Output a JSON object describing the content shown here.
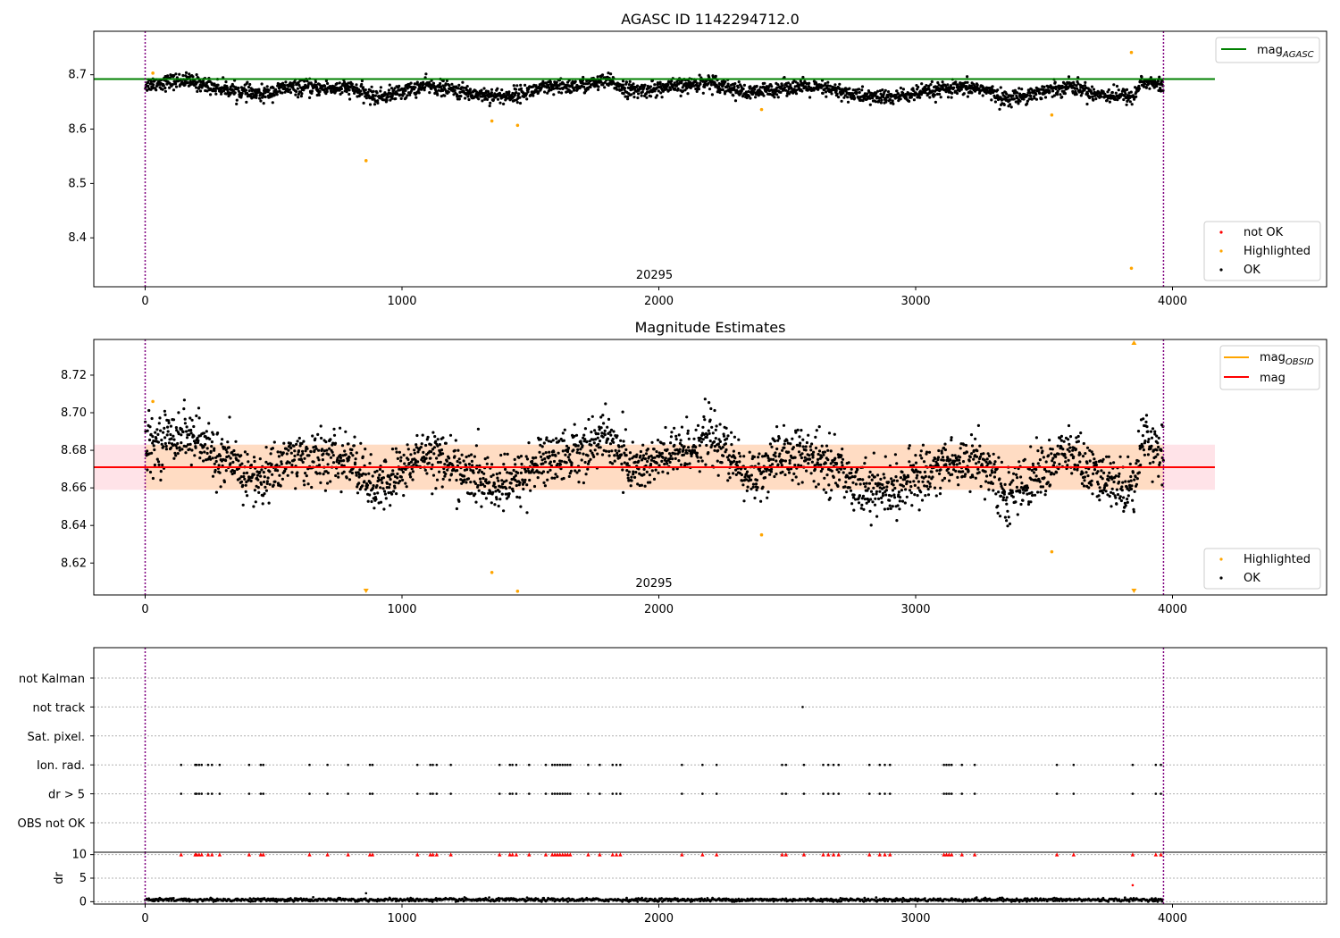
{
  "chart_data": [
    {
      "type": "scatter",
      "title": "AGASC ID 1142294712.0",
      "xlim": [
        -200,
        4600
      ],
      "ylim": [
        8.31,
        8.78
      ],
      "xticks": [
        0,
        1000,
        2000,
        3000,
        4000
      ],
      "yticks": [
        8.4,
        8.5,
        8.6,
        8.7
      ],
      "obsid_label": "20295",
      "obsid_label_x": 2000,
      "obs_bounds": [
        0,
        3965
      ],
      "legend_upper": [
        {
          "label": "mag",
          "sub": "AGASC",
          "color": "#008000"
        }
      ],
      "legend_lower": [
        {
          "label": "not OK",
          "color": "#ff0000"
        },
        {
          "label": "Highlighted",
          "color": "#ffa500"
        },
        {
          "label": "OK",
          "color": "#000000"
        }
      ],
      "mag_agasc": {
        "value": 8.692,
        "x_end": 4165
      },
      "highlighted_points": [
        [
          30,
          8.703
        ],
        [
          860,
          8.542
        ],
        [
          1350,
          8.615
        ],
        [
          1450,
          8.607
        ],
        [
          2400,
          8.636
        ],
        [
          3530,
          8.626
        ],
        [
          3840,
          8.741
        ],
        [
          3840,
          8.344
        ]
      ],
      "ok_trend": [
        [
          0,
          8.682
        ],
        [
          150,
          8.69
        ],
        [
          300,
          8.675
        ],
        [
          450,
          8.663
        ],
        [
          550,
          8.676
        ],
        [
          800,
          8.675
        ],
        [
          900,
          8.658
        ],
        [
          1100,
          8.68
        ],
        [
          1250,
          8.667
        ],
        [
          1400,
          8.66
        ],
        [
          1550,
          8.675
        ],
        [
          1700,
          8.68
        ],
        [
          1800,
          8.688
        ],
        [
          1900,
          8.67
        ],
        [
          2100,
          8.68
        ],
        [
          2200,
          8.688
        ],
        [
          2350,
          8.665
        ],
        [
          2500,
          8.678
        ],
        [
          2650,
          8.674
        ],
        [
          2800,
          8.66
        ],
        [
          2900,
          8.658
        ],
        [
          3100,
          8.672
        ],
        [
          3250,
          8.676
        ],
        [
          3350,
          8.655
        ],
        [
          3450,
          8.665
        ],
        [
          3600,
          8.68
        ],
        [
          3700,
          8.665
        ],
        [
          3850,
          8.66
        ],
        [
          3880,
          8.688
        ],
        [
          3960,
          8.68
        ]
      ],
      "ok_scatter": 0.007
    },
    {
      "type": "scatter",
      "title": "Magnitude Estimates",
      "xlim": [
        -200,
        4600
      ],
      "ylim": [
        8.603,
        8.739
      ],
      "xticks": [
        0,
        1000,
        2000,
        3000,
        4000
      ],
      "yticks": [
        8.62,
        8.64,
        8.66,
        8.68,
        8.7,
        8.72
      ],
      "obsid_label": "20295",
      "obsid_label_x": 2000,
      "obs_bounds": [
        0,
        3965
      ],
      "legend_upper": [
        {
          "label": "mag",
          "sub": "OBSID",
          "color": "#ffa500"
        },
        {
          "label": "mag",
          "sub": "",
          "color": "#ff0000"
        }
      ],
      "legend_lower": [
        {
          "label": "Highlighted",
          "color": "#ffa500"
        },
        {
          "label": "OK",
          "color": "#000000"
        }
      ],
      "mag": {
        "value": 8.671,
        "x_end": 4165
      },
      "mag_band": [
        8.659,
        8.683
      ],
      "obsid_band": [
        8.659,
        8.683
      ],
      "highlighted_points": [
        [
          30,
          8.706
        ],
        [
          1350,
          8.615
        ],
        [
          1450,
          8.605
        ],
        [
          2400,
          8.635
        ],
        [
          3530,
          8.626
        ]
      ],
      "clipped_markers": [
        [
          860,
          "down"
        ],
        [
          3850,
          "down"
        ],
        [
          3850,
          "up"
        ]
      ],
      "ok_trend": [
        [
          0,
          8.682
        ],
        [
          150,
          8.69
        ],
        [
          300,
          8.675
        ],
        [
          450,
          8.663
        ],
        [
          550,
          8.676
        ],
        [
          800,
          8.675
        ],
        [
          900,
          8.658
        ],
        [
          1100,
          8.68
        ],
        [
          1250,
          8.667
        ],
        [
          1400,
          8.66
        ],
        [
          1550,
          8.675
        ],
        [
          1700,
          8.68
        ],
        [
          1800,
          8.688
        ],
        [
          1900,
          8.67
        ],
        [
          2100,
          8.68
        ],
        [
          2200,
          8.688
        ],
        [
          2350,
          8.665
        ],
        [
          2500,
          8.678
        ],
        [
          2650,
          8.674
        ],
        [
          2800,
          8.66
        ],
        [
          2900,
          8.658
        ],
        [
          3100,
          8.672
        ],
        [
          3250,
          8.676
        ],
        [
          3350,
          8.655
        ],
        [
          3450,
          8.665
        ],
        [
          3600,
          8.68
        ],
        [
          3700,
          8.665
        ],
        [
          3850,
          8.66
        ],
        [
          3880,
          8.688
        ],
        [
          3960,
          8.68
        ]
      ],
      "ok_scatter": 0.007
    },
    {
      "type": "scatter",
      "title": "",
      "xlim": [
        -200,
        4600
      ],
      "xticks": [
        0,
        1000,
        2000,
        3000,
        4000
      ],
      "obs_bounds": [
        0,
        3965
      ],
      "flag_rows": [
        "not Kalman",
        "not track",
        "Sat. pixel.",
        "Ion. rad.",
        "dr > 5",
        "OBS not OK"
      ],
      "flag_points": {
        "not track": [
          2560
        ],
        "Ion. rad.": [
          140,
          195,
          200,
          210,
          220,
          245,
          260,
          290,
          405,
          450,
          460,
          640,
          710,
          790,
          875,
          885,
          1060,
          1110,
          1120,
          1135,
          1190,
          1380,
          1420,
          1430,
          1445,
          1495,
          1560,
          1585,
          1595,
          1605,
          1615,
          1625,
          1635,
          1645,
          1655,
          1725,
          1770,
          1820,
          1835,
          1850,
          2090,
          2170,
          2225,
          2480,
          2495,
          2565,
          2640,
          2660,
          2680,
          2700,
          2820,
          2860,
          2880,
          2900,
          3110,
          3120,
          3130,
          3140,
          3180,
          3230,
          3550,
          3615,
          3845,
          3935,
          3955
        ],
        "dr > 5": [
          140,
          195,
          200,
          210,
          220,
          245,
          260,
          290,
          405,
          450,
          460,
          640,
          710,
          790,
          875,
          885,
          1060,
          1110,
          1120,
          1135,
          1190,
          1380,
          1420,
          1430,
          1445,
          1495,
          1560,
          1585,
          1595,
          1605,
          1615,
          1625,
          1635,
          1645,
          1655,
          1725,
          1770,
          1820,
          1835,
          1850,
          2090,
          2170,
          2225,
          2480,
          2495,
          2565,
          2640,
          2660,
          2680,
          2700,
          2820,
          2860,
          2880,
          2900,
          3110,
          3120,
          3130,
          3140,
          3180,
          3230,
          3550,
          3615,
          3845,
          3935,
          3955
        ]
      }
    },
    {
      "type": "scatter",
      "title": "",
      "ylabel": "dr",
      "xlim": [
        -200,
        4600
      ],
      "ylim": [
        -0.5,
        10.5
      ],
      "xticks": [
        0,
        1000,
        2000,
        3000,
        4000
      ],
      "yticks": [
        0,
        5,
        10
      ],
      "obs_bounds": [
        0,
        3965
      ],
      "dr_level": 0.4,
      "dr_spikes": [
        [
          860,
          1.8
        ],
        [
          3845,
          3.5
        ]
      ],
      "clipped_markers_at": 10
    }
  ],
  "colors": {
    "ok": "#000000",
    "highlighted": "#ffa500",
    "not_ok": "#ff0000",
    "agasc_line": "#008000",
    "mag_line": "#ff0000",
    "obsid_line": "#ffa500",
    "band_fill": "#ffc0cb",
    "obsid_fill": "#ffdab9",
    "obs_bound": "#800080",
    "grid": "#b0b0b0"
  }
}
